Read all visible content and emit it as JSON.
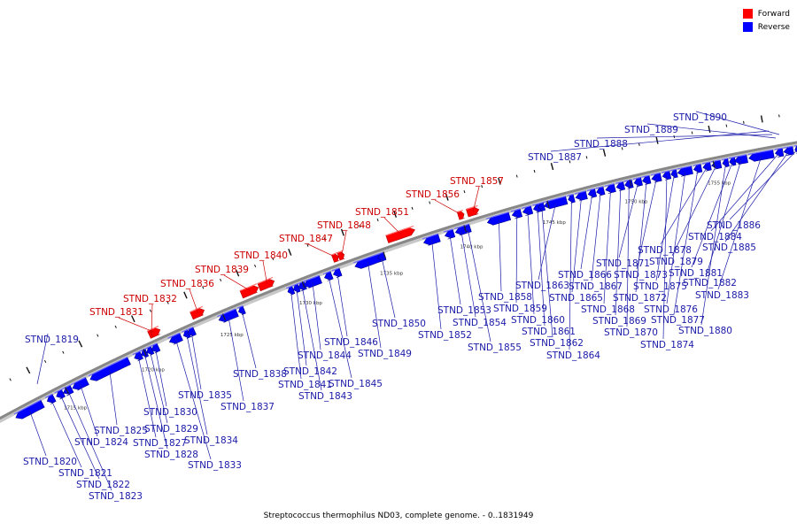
{
  "colors": {
    "forward": "#ff0000",
    "reverse": "#0000ff",
    "forward_label": "#cc0000",
    "reverse_label": "#1a1aa8",
    "backbone": "#888888"
  },
  "legend": [
    {
      "label": "Forward",
      "color": "#ff0000"
    },
    {
      "label": "Reverse",
      "color": "#0000ff"
    }
  ],
  "caption": "Streptococcus thermophilus ND03, complete genome. - 0..1831949",
  "scale_labels": [
    "1715 kbp",
    "1720 kbp",
    "1725 kbp",
    "1730 kbp",
    "1735 kbp",
    "1740 kbp",
    "1745 kbp",
    "1750 kbp",
    "1755 kbp"
  ],
  "genes": [
    {
      "name": "STND_1819",
      "strand": "reverse"
    },
    {
      "name": "STND_1820",
      "strand": "reverse"
    },
    {
      "name": "STND_1821",
      "strand": "reverse"
    },
    {
      "name": "STND_1822",
      "strand": "reverse"
    },
    {
      "name": "STND_1823",
      "strand": "reverse"
    },
    {
      "name": "STND_1824",
      "strand": "reverse"
    },
    {
      "name": "STND_1825",
      "strand": "reverse"
    },
    {
      "name": "STND_1827",
      "strand": "reverse"
    },
    {
      "name": "STND_1828",
      "strand": "reverse"
    },
    {
      "name": "STND_1829",
      "strand": "reverse"
    },
    {
      "name": "STND_1830",
      "strand": "reverse"
    },
    {
      "name": "STND_1831",
      "strand": "forward"
    },
    {
      "name": "STND_1832",
      "strand": "forward"
    },
    {
      "name": "STND_1833",
      "strand": "reverse"
    },
    {
      "name": "STND_1834",
      "strand": "reverse"
    },
    {
      "name": "STND_1835",
      "strand": "reverse"
    },
    {
      "name": "STND_1836",
      "strand": "forward"
    },
    {
      "name": "STND_1837",
      "strand": "reverse"
    },
    {
      "name": "STND_1838",
      "strand": "reverse"
    },
    {
      "name": "STND_1839",
      "strand": "forward"
    },
    {
      "name": "STND_1840",
      "strand": "forward"
    },
    {
      "name": "STND_1841",
      "strand": "reverse"
    },
    {
      "name": "STND_1842",
      "strand": "reverse"
    },
    {
      "name": "STND_1843",
      "strand": "reverse"
    },
    {
      "name": "STND_1844",
      "strand": "reverse"
    },
    {
      "name": "STND_1845",
      "strand": "reverse"
    },
    {
      "name": "STND_1846",
      "strand": "reverse"
    },
    {
      "name": "STND_1847",
      "strand": "forward"
    },
    {
      "name": "STND_1848",
      "strand": "forward"
    },
    {
      "name": "STND_1849",
      "strand": "reverse"
    },
    {
      "name": "STND_1850",
      "strand": "reverse"
    },
    {
      "name": "STND_1851",
      "strand": "forward"
    },
    {
      "name": "STND_1852",
      "strand": "reverse"
    },
    {
      "name": "STND_1853",
      "strand": "reverse"
    },
    {
      "name": "STND_1854",
      "strand": "reverse"
    },
    {
      "name": "STND_1855",
      "strand": "reverse"
    },
    {
      "name": "STND_1856",
      "strand": "forward"
    },
    {
      "name": "STND_1857",
      "strand": "forward"
    },
    {
      "name": "STND_1858",
      "strand": "reverse"
    },
    {
      "name": "STND_1859",
      "strand": "reverse"
    },
    {
      "name": "STND_1860",
      "strand": "reverse"
    },
    {
      "name": "STND_1861",
      "strand": "reverse"
    },
    {
      "name": "STND_1862",
      "strand": "reverse"
    },
    {
      "name": "STND_1863",
      "strand": "reverse"
    },
    {
      "name": "STND_1864",
      "strand": "reverse"
    },
    {
      "name": "STND_1865",
      "strand": "reverse"
    },
    {
      "name": "STND_1866",
      "strand": "reverse"
    },
    {
      "name": "STND_1867",
      "strand": "reverse"
    },
    {
      "name": "STND_1868",
      "strand": "reverse"
    },
    {
      "name": "STND_1869",
      "strand": "reverse"
    },
    {
      "name": "STND_1870",
      "strand": "reverse"
    },
    {
      "name": "STND_1871",
      "strand": "reverse"
    },
    {
      "name": "STND_1872",
      "strand": "reverse"
    },
    {
      "name": "STND_1873",
      "strand": "reverse"
    },
    {
      "name": "STND_1874",
      "strand": "reverse"
    },
    {
      "name": "STND_1875",
      "strand": "reverse"
    },
    {
      "name": "STND_1876",
      "strand": "reverse"
    },
    {
      "name": "STND_1877",
      "strand": "reverse"
    },
    {
      "name": "STND_1878",
      "strand": "reverse"
    },
    {
      "name": "STND_1879",
      "strand": "reverse"
    },
    {
      "name": "STND_1880",
      "strand": "reverse"
    },
    {
      "name": "STND_1881",
      "strand": "reverse"
    },
    {
      "name": "STND_1882",
      "strand": "reverse"
    },
    {
      "name": "STND_1883",
      "strand": "reverse"
    },
    {
      "name": "STND_1884",
      "strand": "reverse"
    },
    {
      "name": "STND_1885",
      "strand": "reverse"
    },
    {
      "name": "STND_1886",
      "strand": "reverse"
    },
    {
      "name": "STND_1887",
      "strand": "reverse"
    },
    {
      "name": "STND_1888",
      "strand": "reverse"
    },
    {
      "name": "STND_1889",
      "strand": "reverse"
    },
    {
      "name": "STND_1890",
      "strand": "reverse"
    }
  ]
}
